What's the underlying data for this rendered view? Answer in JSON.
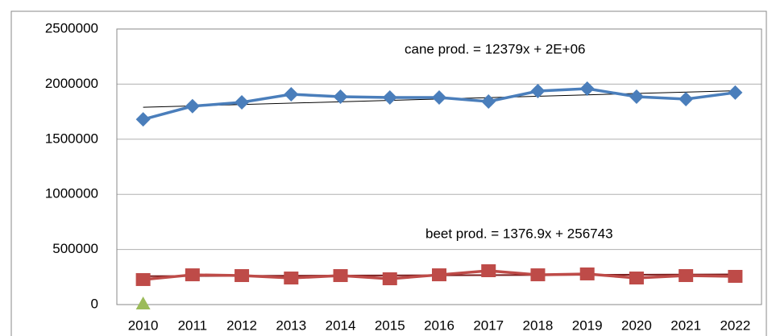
{
  "chart_data": {
    "type": "line",
    "categories": [
      "2010",
      "2011",
      "2012",
      "2013",
      "2014",
      "2015",
      "2016",
      "2017",
      "2018",
      "2019",
      "2020",
      "2021",
      "2022"
    ],
    "series": [
      {
        "color": "#4a7ebb",
        "marker": "diamond",
        "values": [
          1680000,
          1800000,
          1835000,
          1908000,
          1886000,
          1879000,
          1879000,
          1842000,
          1937000,
          1959000,
          1886000,
          1864000,
          1923000
        ]
      },
      {
        "color": "#be4b48",
        "marker": "square",
        "values": [
          227000,
          270000,
          263000,
          241000,
          263000,
          234000,
          270000,
          307000,
          270000,
          278000,
          241000,
          263000,
          256000
        ]
      },
      {
        "color": "#9bbb59",
        "marker": "triangle",
        "values": [
          0,
          null,
          null,
          null,
          null,
          null,
          null,
          null,
          null,
          null,
          null,
          null,
          null
        ]
      }
    ],
    "trendlines": [
      {
        "label": "cane prod. = 12379x + 2E+06",
        "color": "#000000",
        "start": 1790000,
        "end": 1940000
      },
      {
        "label": "beet prod. = 1376.9x + 256743",
        "color": "#7b1c1c",
        "start": 258000,
        "end": 274000
      }
    ],
    "ylim": [
      0,
      2500000
    ],
    "yticks": [
      0,
      500000,
      1000000,
      1500000,
      2000000,
      2500000
    ],
    "grid": true
  }
}
